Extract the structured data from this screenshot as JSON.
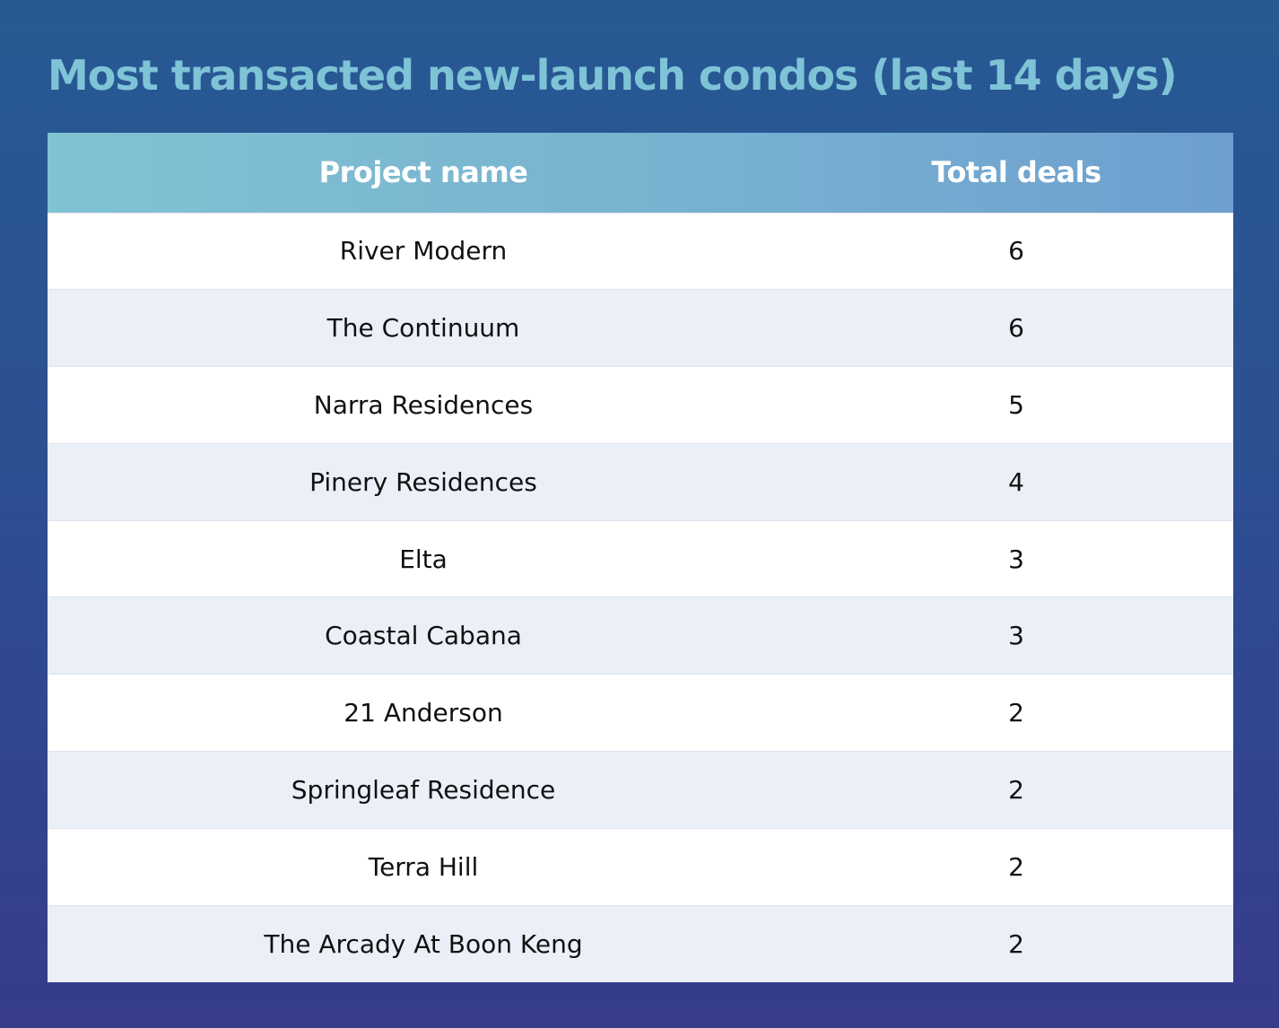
{
  "chart_data": {
    "type": "table",
    "title": "Most transacted new-launch condos (last 14 days)",
    "columns": [
      "Project name",
      "Total deals"
    ],
    "rows": [
      {
        "name": "River Modern",
        "deals": "6"
      },
      {
        "name": "The Continuum",
        "deals": "6"
      },
      {
        "name": "Narra Residences",
        "deals": "5"
      },
      {
        "name": "Pinery Residences",
        "deals": "4"
      },
      {
        "name": "Elta",
        "deals": "3"
      },
      {
        "name": "Coastal Cabana",
        "deals": "3"
      },
      {
        "name": "21 Anderson",
        "deals": "2"
      },
      {
        "name": "Springleaf Residence",
        "deals": "2"
      },
      {
        "name": "Terra Hill",
        "deals": "2"
      },
      {
        "name": "The Arcady At Boon Keng",
        "deals": "2"
      }
    ]
  },
  "colors": {
    "title": "#7fc3d7",
    "header_start": "#80c3d2",
    "header_end": "#6e9fcf",
    "row_alt": "#eaeff8",
    "background_top": "#275a93",
    "background_bottom": "#373b8c"
  }
}
